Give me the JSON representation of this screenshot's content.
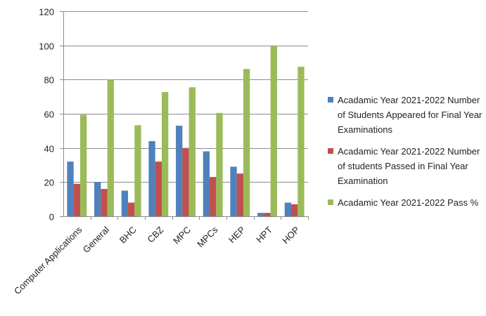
{
  "chart_data": {
    "type": "bar",
    "categories": [
      "Computer Applications",
      "General",
      "BHC",
      "CBZ",
      "MPC",
      "MPCs",
      "HEP",
      "HPT",
      "HOP"
    ],
    "series": [
      {
        "name": "Acadamic Year 2021-2022 Number of Students  Appeared for Final Year Examinations",
        "color": "#4f81bd",
        "values": [
          32,
          20,
          15,
          44,
          53,
          38,
          29,
          2,
          8
        ]
      },
      {
        "name": "Acadamic Year 2021-2022 Number of students  Passed in Final Year Examination",
        "color": "#c0504d",
        "values": [
          19,
          16,
          8,
          32,
          40,
          23,
          25,
          2,
          7
        ]
      },
      {
        "name": "Acadamic Year 2021-2022 Pass %",
        "color": "#9bbb59",
        "values": [
          59.4,
          80,
          53.3,
          72.7,
          75.5,
          60.5,
          86.2,
          100,
          87.5
        ]
      }
    ],
    "title": "",
    "xlabel": "",
    "ylabel": "",
    "ylim": [
      0,
      120
    ],
    "yticks": [
      "0",
      "20",
      "40",
      "60",
      "80",
      "100",
      "120"
    ],
    "grid": true,
    "legend": "right"
  }
}
